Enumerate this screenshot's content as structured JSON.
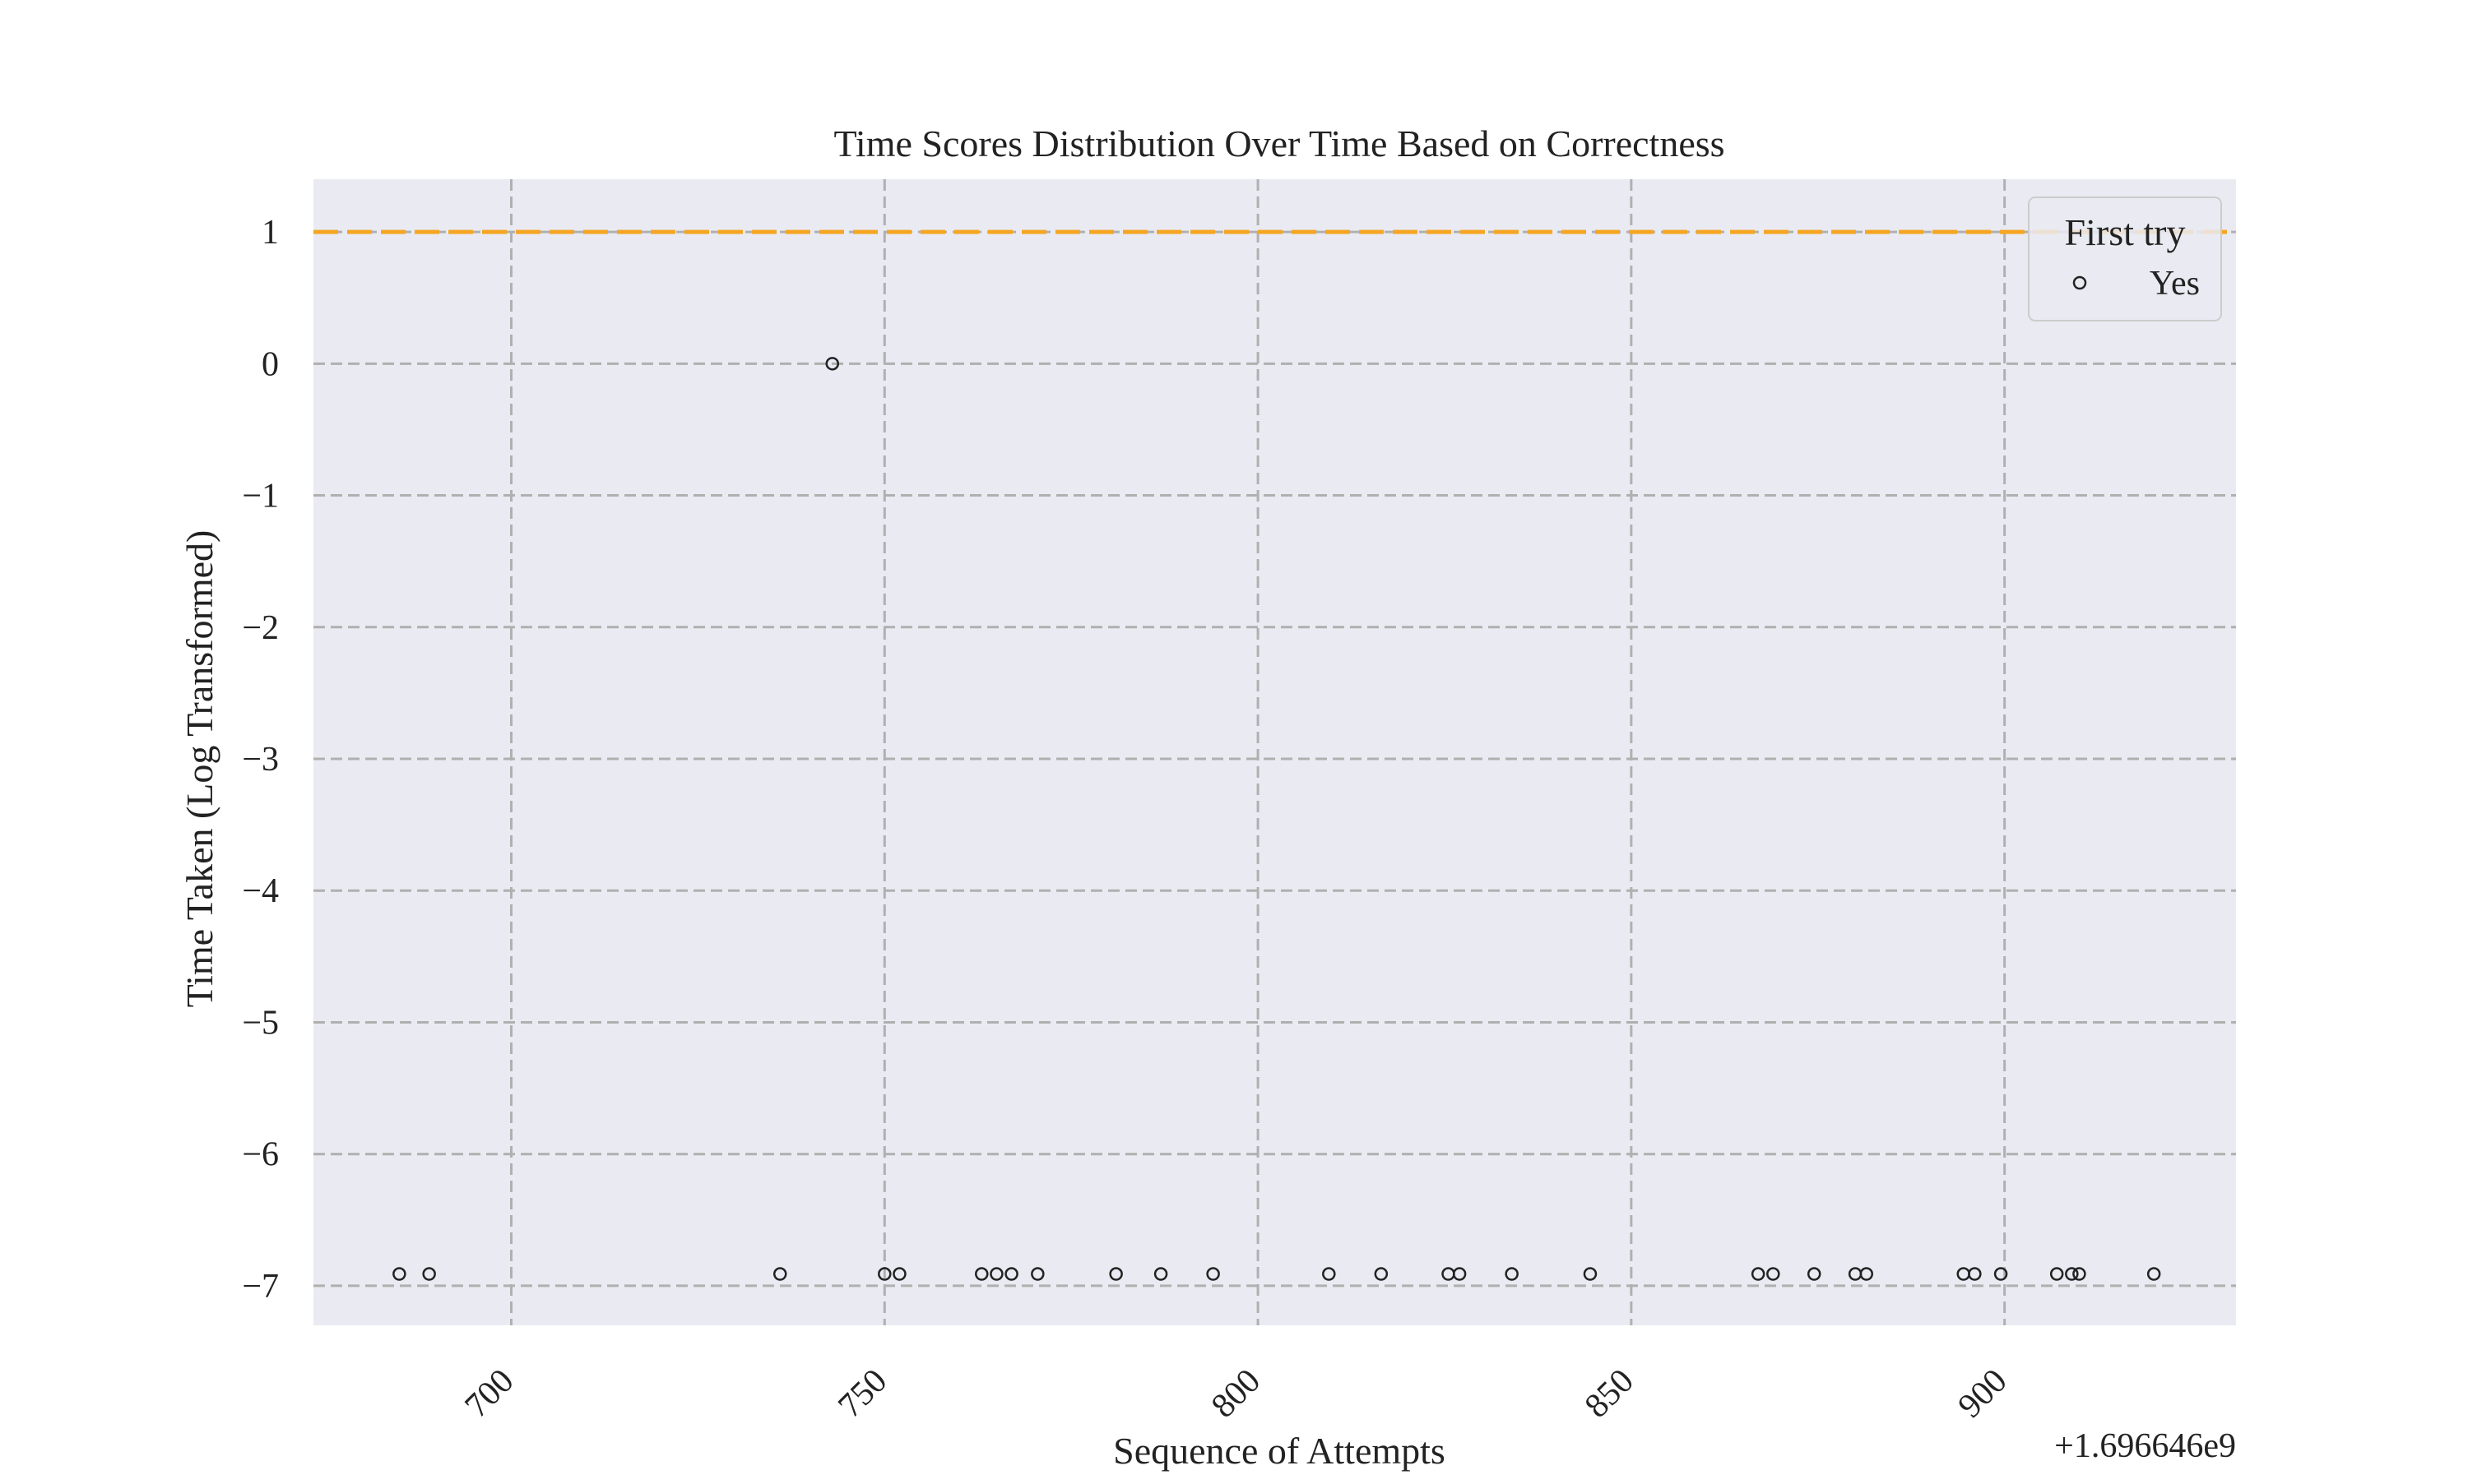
{
  "chart_data": {
    "type": "scatter",
    "title": "Time Scores Distribution Over Time Based on Correctness",
    "xlabel": "Sequence of Attempts",
    "ylabel": "Time Taken (Log Transformed)",
    "x_offset_label": "+1.696646e9",
    "x_ticks": [
      700,
      750,
      800,
      850,
      900
    ],
    "y_ticks": [
      1,
      0,
      -1,
      -2,
      -3,
      -4,
      -5,
      -6,
      -7
    ],
    "y_tick_labels": [
      "1",
      "0",
      "−1",
      "−2",
      "−3",
      "−4",
      "−5",
      "−6",
      "−7"
    ],
    "xlim": [
      673.5,
      931
    ],
    "ylim": [
      -7.3,
      1.4
    ],
    "grid": true,
    "grid_style": "dashed",
    "reference_line": {
      "y": 1,
      "color": "#f5a623",
      "style": "dashed"
    },
    "legend": {
      "title": "First try",
      "position": "top-right",
      "entries": [
        "Yes"
      ]
    },
    "background_color": "#eaeaf2",
    "series": [
      {
        "name": "Yes",
        "marker": "open-circle",
        "color": "#222222",
        "x": [
          685,
          689,
          736,
          743,
          750,
          752,
          763,
          765,
          767,
          770.5,
          781,
          787,
          794,
          809.5,
          816.5,
          825.5,
          827,
          834,
          844.5,
          867,
          869,
          874.5,
          880,
          881.5,
          894.5,
          896,
          899.5,
          907,
          909,
          910,
          920
        ],
        "y": [
          -6.91,
          -6.91,
          -6.91,
          0,
          -6.91,
          -6.91,
          -6.91,
          -6.91,
          -6.91,
          -6.91,
          -6.91,
          -6.91,
          -6.91,
          -6.91,
          -6.91,
          -6.91,
          -6.91,
          -6.91,
          -6.91,
          -6.91,
          -6.91,
          -6.91,
          -6.91,
          -6.91,
          -6.91,
          -6.91,
          -6.91,
          -6.91,
          -6.91,
          -6.91,
          -6.91
        ]
      }
    ]
  }
}
